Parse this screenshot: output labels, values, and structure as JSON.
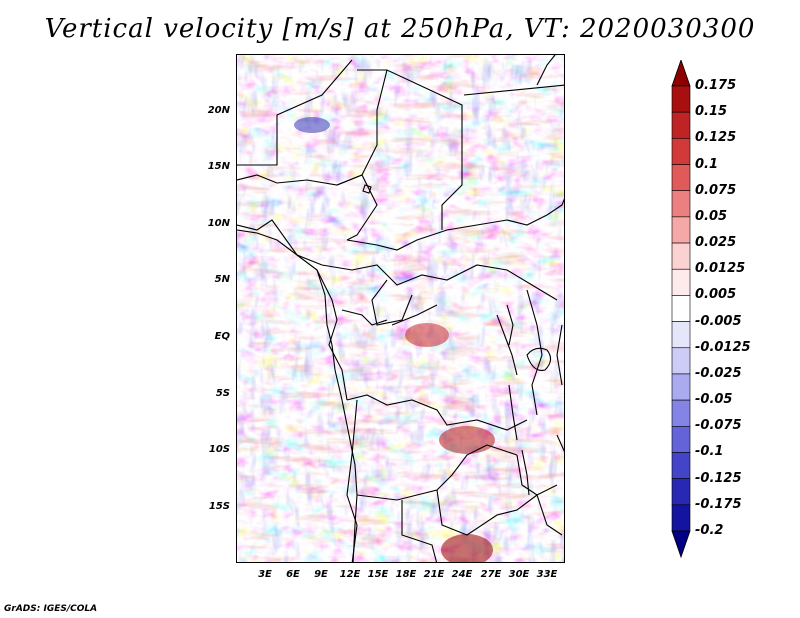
{
  "title": "Vertical velocity [m/s] at 250hPa, VT: 2020030300",
  "footer": "GrADS: IGES/COLA",
  "map": {
    "lat_range": [
      -20,
      25
    ],
    "lon_range": [
      0,
      35
    ],
    "lat_labels": [
      "20N",
      "15N",
      "10N",
      "5N",
      "EQ",
      "5S",
      "10S",
      "15S"
    ],
    "lon_labels": [
      "3E",
      "6E",
      "9E",
      "12E",
      "15E",
      "18E",
      "21E",
      "24E",
      "27E",
      "30E",
      "33E"
    ]
  },
  "colorbar": {
    "labels": [
      "0.175",
      "0.15",
      "0.125",
      "0.1",
      "0.075",
      "0.05",
      "0.025",
      "0.0125",
      "0.005",
      "-0.005",
      "-0.0125",
      "-0.025",
      "-0.05",
      "-0.075",
      "-0.1",
      "-0.125",
      "-0.175",
      "-0.2"
    ],
    "colors": [
      "#8c0000",
      "#a81010",
      "#be2424",
      "#d23a3a",
      "#e05a5a",
      "#ec8080",
      "#f5a8a8",
      "#fad2d2",
      "#fdebeb",
      "#ffffff",
      "#e6e6fb",
      "#ccccf6",
      "#aaaaef",
      "#8484e4",
      "#6464d8",
      "#4444c8",
      "#2828b4",
      "#1414a0",
      "#000080"
    ]
  }
}
